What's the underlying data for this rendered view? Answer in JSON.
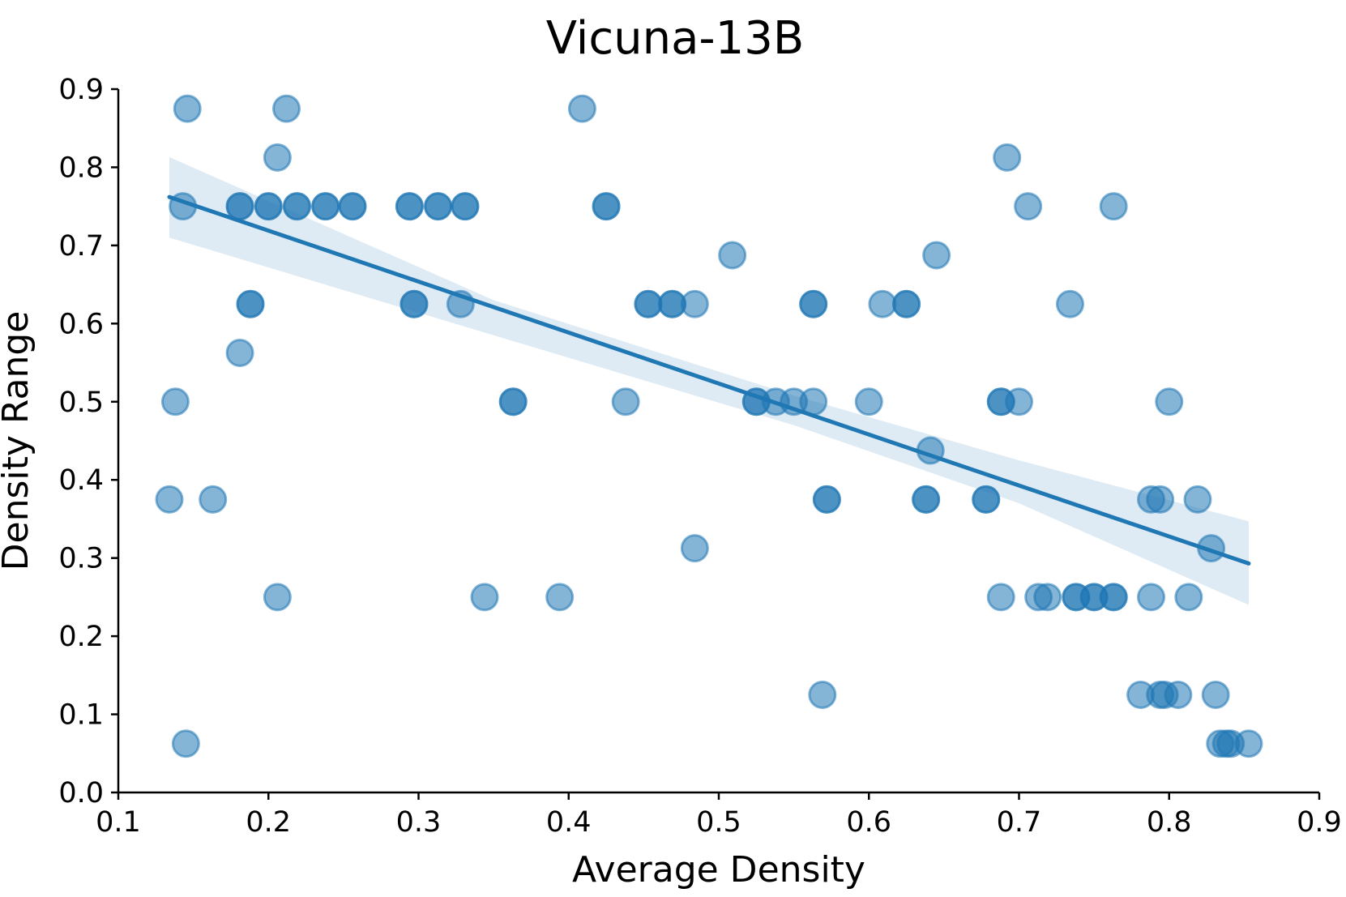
{
  "chart_data": {
    "type": "scatter",
    "title": "Vicuna-13B",
    "xlabel": "Average Density",
    "ylabel": "Density Range",
    "xlim": [
      0.1,
      0.9
    ],
    "ylim": [
      0.0,
      0.9
    ],
    "xticks": [
      "0.1",
      "0.2",
      "0.3",
      "0.4",
      "0.5",
      "0.6",
      "0.7",
      "0.8",
      "0.9"
    ],
    "yticks": [
      "0.0",
      "0.1",
      "0.2",
      "0.3",
      "0.4",
      "0.5",
      "0.6",
      "0.7",
      "0.8",
      "0.9"
    ],
    "grid": false,
    "colors": {
      "point_fill": "#1f77b4",
      "point_stroke": "#1f77b4",
      "regression_line": "#1f77b4",
      "confidence_band": "#1f77b4"
    },
    "points": [
      {
        "x": 0.146,
        "y": 0.875
      },
      {
        "x": 0.212,
        "y": 0.875
      },
      {
        "x": 0.409,
        "y": 0.875
      },
      {
        "x": 0.206,
        "y": 0.8125
      },
      {
        "x": 0.692,
        "y": 0.8125
      },
      {
        "x": 0.143,
        "y": 0.75
      },
      {
        "x": 0.181,
        "y": 0.75
      },
      {
        "x": 0.181,
        "y": 0.75
      },
      {
        "x": 0.2,
        "y": 0.75
      },
      {
        "x": 0.2,
        "y": 0.75
      },
      {
        "x": 0.219,
        "y": 0.75
      },
      {
        "x": 0.219,
        "y": 0.75
      },
      {
        "x": 0.238,
        "y": 0.75
      },
      {
        "x": 0.238,
        "y": 0.75
      },
      {
        "x": 0.256,
        "y": 0.75
      },
      {
        "x": 0.256,
        "y": 0.75
      },
      {
        "x": 0.294,
        "y": 0.75
      },
      {
        "x": 0.294,
        "y": 0.75
      },
      {
        "x": 0.313,
        "y": 0.75
      },
      {
        "x": 0.313,
        "y": 0.75
      },
      {
        "x": 0.331,
        "y": 0.75
      },
      {
        "x": 0.331,
        "y": 0.75
      },
      {
        "x": 0.425,
        "y": 0.75
      },
      {
        "x": 0.425,
        "y": 0.75
      },
      {
        "x": 0.706,
        "y": 0.75
      },
      {
        "x": 0.763,
        "y": 0.75
      },
      {
        "x": 0.509,
        "y": 0.6875
      },
      {
        "x": 0.645,
        "y": 0.6875
      },
      {
        "x": 0.188,
        "y": 0.625
      },
      {
        "x": 0.188,
        "y": 0.625
      },
      {
        "x": 0.297,
        "y": 0.625
      },
      {
        "x": 0.297,
        "y": 0.625
      },
      {
        "x": 0.328,
        "y": 0.625
      },
      {
        "x": 0.453,
        "y": 0.625
      },
      {
        "x": 0.453,
        "y": 0.625
      },
      {
        "x": 0.469,
        "y": 0.625
      },
      {
        "x": 0.469,
        "y": 0.625
      },
      {
        "x": 0.484,
        "y": 0.625
      },
      {
        "x": 0.563,
        "y": 0.625
      },
      {
        "x": 0.563,
        "y": 0.625
      },
      {
        "x": 0.609,
        "y": 0.625
      },
      {
        "x": 0.625,
        "y": 0.625
      },
      {
        "x": 0.625,
        "y": 0.625
      },
      {
        "x": 0.734,
        "y": 0.625
      },
      {
        "x": 0.181,
        "y": 0.5625
      },
      {
        "x": 0.138,
        "y": 0.5
      },
      {
        "x": 0.363,
        "y": 0.5
      },
      {
        "x": 0.363,
        "y": 0.5
      },
      {
        "x": 0.438,
        "y": 0.5
      },
      {
        "x": 0.525,
        "y": 0.5
      },
      {
        "x": 0.525,
        "y": 0.5
      },
      {
        "x": 0.538,
        "y": 0.5
      },
      {
        "x": 0.55,
        "y": 0.5
      },
      {
        "x": 0.563,
        "y": 0.5
      },
      {
        "x": 0.6,
        "y": 0.5
      },
      {
        "x": 0.688,
        "y": 0.5
      },
      {
        "x": 0.688,
        "y": 0.5
      },
      {
        "x": 0.7,
        "y": 0.5
      },
      {
        "x": 0.8,
        "y": 0.5
      },
      {
        "x": 0.641,
        "y": 0.4375
      },
      {
        "x": 0.134,
        "y": 0.375
      },
      {
        "x": 0.163,
        "y": 0.375
      },
      {
        "x": 0.572,
        "y": 0.375
      },
      {
        "x": 0.572,
        "y": 0.375
      },
      {
        "x": 0.638,
        "y": 0.375
      },
      {
        "x": 0.638,
        "y": 0.375
      },
      {
        "x": 0.678,
        "y": 0.375
      },
      {
        "x": 0.678,
        "y": 0.375
      },
      {
        "x": 0.788,
        "y": 0.375
      },
      {
        "x": 0.794,
        "y": 0.375
      },
      {
        "x": 0.819,
        "y": 0.375
      },
      {
        "x": 0.484,
        "y": 0.3125
      },
      {
        "x": 0.828,
        "y": 0.3125
      },
      {
        "x": 0.206,
        "y": 0.25
      },
      {
        "x": 0.344,
        "y": 0.25
      },
      {
        "x": 0.394,
        "y": 0.25
      },
      {
        "x": 0.688,
        "y": 0.25
      },
      {
        "x": 0.713,
        "y": 0.25
      },
      {
        "x": 0.719,
        "y": 0.25
      },
      {
        "x": 0.738,
        "y": 0.25
      },
      {
        "x": 0.738,
        "y": 0.25
      },
      {
        "x": 0.75,
        "y": 0.25
      },
      {
        "x": 0.75,
        "y": 0.25
      },
      {
        "x": 0.763,
        "y": 0.25
      },
      {
        "x": 0.763,
        "y": 0.25
      },
      {
        "x": 0.788,
        "y": 0.25
      },
      {
        "x": 0.813,
        "y": 0.25
      },
      {
        "x": 0.569,
        "y": 0.125
      },
      {
        "x": 0.781,
        "y": 0.125
      },
      {
        "x": 0.794,
        "y": 0.125
      },
      {
        "x": 0.797,
        "y": 0.125
      },
      {
        "x": 0.806,
        "y": 0.125
      },
      {
        "x": 0.831,
        "y": 0.125
      },
      {
        "x": 0.145,
        "y": 0.0625
      },
      {
        "x": 0.834,
        "y": 0.0625
      },
      {
        "x": 0.838,
        "y": 0.0625
      },
      {
        "x": 0.841,
        "y": 0.0625
      },
      {
        "x": 0.853,
        "y": 0.0625
      }
    ],
    "regression": {
      "x": [
        0.134,
        0.853
      ],
      "y": [
        0.762,
        0.293
      ]
    },
    "confidence_band": {
      "x": [
        0.134,
        0.35,
        0.55,
        0.7,
        0.853
      ],
      "upper": [
        0.813,
        0.63,
        0.508,
        0.425,
        0.347
      ],
      "lower": [
        0.71,
        0.585,
        0.47,
        0.37,
        0.24
      ]
    }
  }
}
